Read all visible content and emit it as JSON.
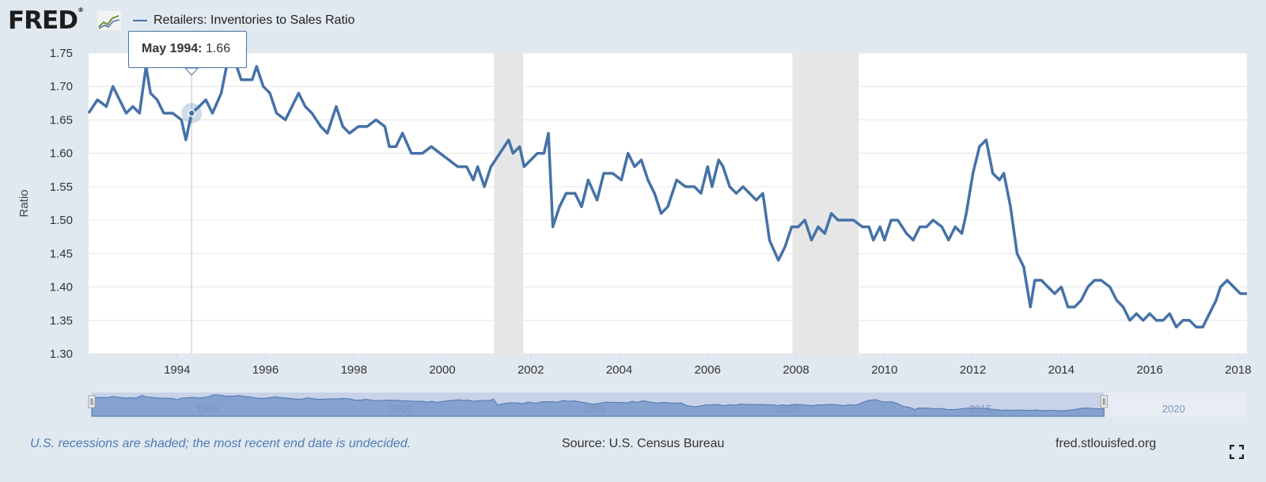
{
  "header": {
    "logo_text": "FRED",
    "logo_mark": "®",
    "logo_icon": "line-chart-icon",
    "series_title": "Retailers: Inventories to Sales Ratio"
  },
  "tooltip": {
    "date": "May 1994:",
    "value": "1.66"
  },
  "colors": {
    "line": "#4572a7",
    "recession": "#e6e6e6",
    "background": "#e1e9f0",
    "navigator_fill": "#7f9fcc"
  },
  "chart_data": {
    "type": "line",
    "title": "Retailers: Inventories to Sales Ratio",
    "ylabel": "Ratio",
    "xlabel": "",
    "ylim": [
      1.3,
      1.75
    ],
    "xlim": [
      1992.0,
      2018.2
    ],
    "y_ticks": [
      "1.75",
      "1.70",
      "1.65",
      "1.60",
      "1.55",
      "1.50",
      "1.45",
      "1.40",
      "1.35",
      "1.30"
    ],
    "x_ticks": [
      "1994",
      "1996",
      "1998",
      "2000",
      "2002",
      "2004",
      "2006",
      "2008",
      "2010",
      "2012",
      "2014",
      "2016",
      "2018"
    ],
    "recessions": [
      [
        2001.17,
        2001.83
      ],
      [
        2007.92,
        2009.42
      ]
    ],
    "hover": {
      "x": 1994.33,
      "y": 1.66
    },
    "series": [
      {
        "name": "Retailers: Inventories to Sales Ratio",
        "points": [
          [
            1992.0,
            1.66
          ],
          [
            1992.2,
            1.68
          ],
          [
            1992.4,
            1.67
          ],
          [
            1992.55,
            1.7
          ],
          [
            1992.7,
            1.68
          ],
          [
            1992.85,
            1.66
          ],
          [
            1993.0,
            1.67
          ],
          [
            1993.15,
            1.66
          ],
          [
            1993.3,
            1.73
          ],
          [
            1993.4,
            1.69
          ],
          [
            1993.55,
            1.68
          ],
          [
            1993.7,
            1.66
          ],
          [
            1993.9,
            1.66
          ],
          [
            1994.1,
            1.65
          ],
          [
            1994.2,
            1.62
          ],
          [
            1994.33,
            1.66
          ],
          [
            1994.5,
            1.67
          ],
          [
            1994.65,
            1.68
          ],
          [
            1994.8,
            1.66
          ],
          [
            1995.0,
            1.69
          ],
          [
            1995.15,
            1.74
          ],
          [
            1995.3,
            1.74
          ],
          [
            1995.45,
            1.71
          ],
          [
            1995.7,
            1.71
          ],
          [
            1995.8,
            1.73
          ],
          [
            1995.95,
            1.7
          ],
          [
            1996.1,
            1.69
          ],
          [
            1996.25,
            1.66
          ],
          [
            1996.45,
            1.65
          ],
          [
            1996.6,
            1.67
          ],
          [
            1996.75,
            1.69
          ],
          [
            1996.9,
            1.67
          ],
          [
            1997.05,
            1.66
          ],
          [
            1997.25,
            1.64
          ],
          [
            1997.4,
            1.63
          ],
          [
            1997.6,
            1.67
          ],
          [
            1997.75,
            1.64
          ],
          [
            1997.9,
            1.63
          ],
          [
            1998.1,
            1.64
          ],
          [
            1998.3,
            1.64
          ],
          [
            1998.5,
            1.65
          ],
          [
            1998.7,
            1.64
          ],
          [
            1998.8,
            1.61
          ],
          [
            1998.95,
            1.61
          ],
          [
            1999.1,
            1.63
          ],
          [
            1999.3,
            1.6
          ],
          [
            1999.55,
            1.6
          ],
          [
            1999.75,
            1.61
          ],
          [
            1999.95,
            1.6
          ],
          [
            2000.15,
            1.59
          ],
          [
            2000.35,
            1.58
          ],
          [
            2000.55,
            1.58
          ],
          [
            2000.7,
            1.56
          ],
          [
            2000.8,
            1.58
          ],
          [
            2000.95,
            1.55
          ],
          [
            2001.1,
            1.58
          ],
          [
            2001.3,
            1.6
          ],
          [
            2001.5,
            1.62
          ],
          [
            2001.6,
            1.6
          ],
          [
            2001.75,
            1.61
          ],
          [
            2001.85,
            1.58
          ],
          [
            2002.0,
            1.59
          ],
          [
            2002.15,
            1.6
          ],
          [
            2002.3,
            1.6
          ],
          [
            2002.4,
            1.63
          ],
          [
            2002.5,
            1.49
          ],
          [
            2002.65,
            1.52
          ],
          [
            2002.8,
            1.54
          ],
          [
            2003.0,
            1.54
          ],
          [
            2003.15,
            1.52
          ],
          [
            2003.3,
            1.56
          ],
          [
            2003.5,
            1.53
          ],
          [
            2003.65,
            1.57
          ],
          [
            2003.85,
            1.57
          ],
          [
            2004.05,
            1.56
          ],
          [
            2004.2,
            1.6
          ],
          [
            2004.35,
            1.58
          ],
          [
            2004.5,
            1.59
          ],
          [
            2004.65,
            1.56
          ],
          [
            2004.8,
            1.54
          ],
          [
            2004.95,
            1.51
          ],
          [
            2005.1,
            1.52
          ],
          [
            2005.3,
            1.56
          ],
          [
            2005.5,
            1.55
          ],
          [
            2005.7,
            1.55
          ],
          [
            2005.85,
            1.54
          ],
          [
            2006.0,
            1.58
          ],
          [
            2006.1,
            1.55
          ],
          [
            2006.25,
            1.59
          ],
          [
            2006.35,
            1.58
          ],
          [
            2006.5,
            1.55
          ],
          [
            2006.65,
            1.54
          ],
          [
            2006.8,
            1.55
          ],
          [
            2006.95,
            1.54
          ],
          [
            2007.1,
            1.53
          ],
          [
            2007.25,
            1.54
          ],
          [
            2007.4,
            1.47
          ],
          [
            2007.6,
            1.44
          ],
          [
            2007.75,
            1.46
          ],
          [
            2007.9,
            1.49
          ],
          [
            2008.05,
            1.49
          ],
          [
            2008.2,
            1.5
          ],
          [
            2008.35,
            1.47
          ],
          [
            2008.5,
            1.49
          ],
          [
            2008.65,
            1.48
          ],
          [
            2008.8,
            1.51
          ],
          [
            2008.95,
            1.5
          ],
          [
            2009.1,
            1.5
          ],
          [
            2009.3,
            1.5
          ],
          [
            2009.5,
            1.49
          ],
          [
            2009.65,
            1.49
          ],
          [
            2009.75,
            1.47
          ],
          [
            2009.9,
            1.49
          ],
          [
            2010.0,
            1.47
          ],
          [
            2010.15,
            1.5
          ],
          [
            2010.3,
            1.5
          ],
          [
            2010.5,
            1.48
          ],
          [
            2010.65,
            1.47
          ],
          [
            2010.8,
            1.49
          ],
          [
            2010.95,
            1.49
          ],
          [
            2011.1,
            1.5
          ],
          [
            2011.3,
            1.49
          ],
          [
            2011.45,
            1.47
          ],
          [
            2011.6,
            1.49
          ],
          [
            2011.75,
            1.48
          ],
          [
            2011.85,
            1.51
          ],
          [
            2012.0,
            1.57
          ],
          [
            2012.15,
            1.61
          ],
          [
            2012.3,
            1.62
          ],
          [
            2012.45,
            1.57
          ],
          [
            2012.6,
            1.56
          ],
          [
            2012.7,
            1.57
          ],
          [
            2012.85,
            1.52
          ],
          [
            2013.0,
            1.45
          ],
          [
            2013.15,
            1.43
          ],
          [
            2013.3,
            1.37
          ],
          [
            2013.4,
            1.41
          ],
          [
            2013.55,
            1.41
          ],
          [
            2013.7,
            1.4
          ],
          [
            2013.85,
            1.39
          ],
          [
            2014.0,
            1.4
          ],
          [
            2014.15,
            1.37
          ],
          [
            2014.3,
            1.37
          ],
          [
            2014.45,
            1.38
          ],
          [
            2014.6,
            1.4
          ],
          [
            2014.75,
            1.41
          ],
          [
            2014.9,
            1.41
          ],
          [
            2015.1,
            1.4
          ],
          [
            2015.25,
            1.38
          ],
          [
            2015.4,
            1.37
          ],
          [
            2015.55,
            1.35
          ],
          [
            2015.7,
            1.36
          ],
          [
            2015.85,
            1.35
          ],
          [
            2016.0,
            1.36
          ],
          [
            2016.15,
            1.35
          ],
          [
            2016.3,
            1.35
          ],
          [
            2016.45,
            1.36
          ],
          [
            2016.6,
            1.34
          ],
          [
            2016.75,
            1.35
          ],
          [
            2016.9,
            1.35
          ],
          [
            2017.05,
            1.34
          ],
          [
            2017.2,
            1.34
          ],
          [
            2017.35,
            1.36
          ],
          [
            2017.5,
            1.38
          ],
          [
            2017.6,
            1.4
          ],
          [
            2017.75,
            1.41
          ],
          [
            2017.9,
            1.4
          ],
          [
            2018.05,
            1.39
          ],
          [
            2018.2,
            1.39
          ]
        ]
      }
    ]
  },
  "navigator": {
    "labels": [
      "1995",
      "2000",
      "2005",
      "2010",
      "2015",
      "2020"
    ]
  },
  "footer": {
    "note": "U.S. recessions are shaded; the most recent end date is undecided.",
    "source": "Source: U.S. Census Bureau",
    "url": "fred.stlouisfed.org"
  }
}
